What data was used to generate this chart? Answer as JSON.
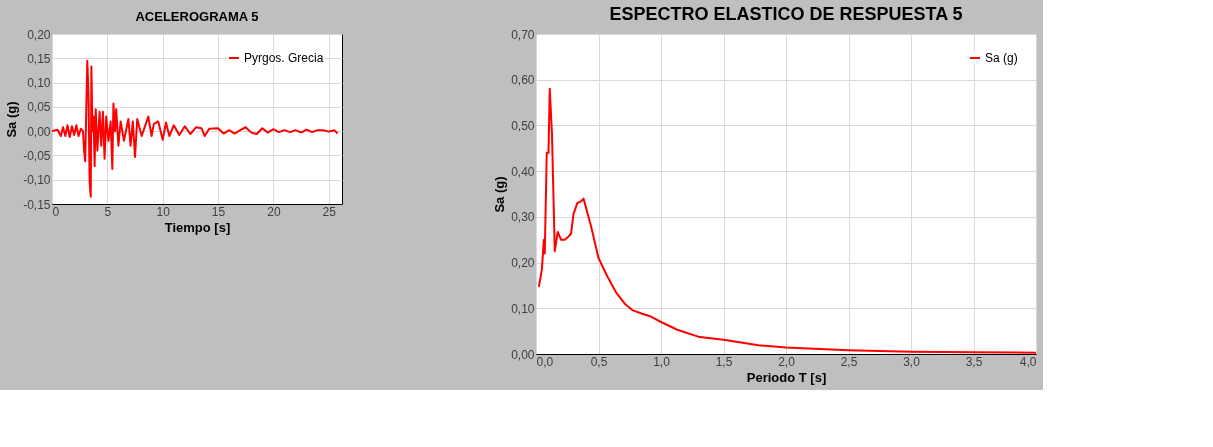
{
  "chart_data": [
    {
      "type": "line",
      "title": "ACELEROGRAMA 5",
      "xlabel": "Tiempo [s]",
      "ylabel": "Sa (g)",
      "legend": "top right",
      "grid": true,
      "xlim": [
        0,
        26.2
      ],
      "xticks": [
        0,
        5,
        10,
        15,
        20,
        25
      ],
      "ylim": [
        -0.15,
        0.2
      ],
      "yticks": [
        {
          "value": -0.15,
          "label": "-0,15"
        },
        {
          "value": -0.1,
          "label": "-0,10"
        },
        {
          "value": -0.05,
          "label": "-0,05"
        },
        {
          "value": 0,
          "label": "0,00"
        },
        {
          "value": 0.05,
          "label": "0,05"
        },
        {
          "value": 0.1,
          "label": "0,10"
        },
        {
          "value": 0.15,
          "label": "0,15"
        },
        {
          "value": 0.2,
          "label": "0,20"
        }
      ],
      "series": [
        {
          "name": "Pyrgos. Grecia",
          "color": "#ff0000",
          "x": [
            0,
            0.5,
            0.8,
            1.0,
            1.2,
            1.4,
            1.6,
            1.8,
            2.0,
            2.2,
            2.4,
            2.6,
            2.8,
            2.9,
            3.0,
            3.1,
            3.19,
            3.3,
            3.4,
            3.5,
            3.56,
            3.65,
            3.75,
            3.85,
            3.95,
            4.1,
            4.3,
            4.45,
            4.6,
            4.75,
            4.9,
            5.1,
            5.3,
            5.45,
            5.55,
            5.7,
            5.8,
            6.0,
            6.2,
            6.5,
            6.9,
            7.1,
            7.3,
            7.5,
            7.7,
            8.1,
            8.7,
            9.0,
            9.2,
            9.6,
            10.0,
            10.3,
            10.6,
            11.0,
            11.5,
            12.0,
            12.5,
            13.0,
            13.5,
            13.8,
            14.2,
            15.0,
            15.5,
            16.0,
            16.5,
            17.0,
            17.5,
            18.0,
            18.5,
            19.0,
            19.5,
            20.0,
            20.5,
            21.0,
            21.5,
            22.0,
            22.5,
            23.0,
            23.5,
            24.0,
            24.5,
            25.0,
            25.5,
            25.8
          ],
          "values": [
            0,
            0.003,
            -0.01,
            0.008,
            -0.01,
            0.012,
            -0.012,
            0.01,
            -0.008,
            0.012,
            -0.01,
            0.005,
            0.0,
            -0.04,
            -0.062,
            0.05,
            0.145,
            0.07,
            -0.105,
            -0.135,
            0.133,
            0.0,
            0.03,
            -0.072,
            0.045,
            -0.04,
            0.04,
            -0.03,
            0.04,
            -0.057,
            0.03,
            -0.02,
            0.02,
            -0.078,
            0.057,
            0.0,
            0.045,
            -0.03,
            0.02,
            -0.02,
            0.025,
            -0.03,
            0.02,
            -0.053,
            0.025,
            -0.01,
            0.03,
            -0.01,
            0.015,
            0.02,
            -0.018,
            0.018,
            -0.01,
            0.012,
            -0.008,
            0.01,
            -0.006,
            0.008,
            0.006,
            -0.01,
            0.005,
            0.006,
            -0.005,
            0.002,
            -0.005,
            0.002,
            0.008,
            -0.003,
            -0.006,
            0.006,
            -0.003,
            0.004,
            -0.002,
            0.002,
            -0.002,
            0.002,
            -0.003,
            0.003,
            -0.002,
            0.002,
            0.002,
            -0.001,
            0.002,
            -0.005
          ]
        }
      ]
    },
    {
      "type": "line",
      "title": "ESPECTRO ELASTICO DE RESPUESTA 5",
      "xlabel": "Periodo T [s]",
      "ylabel": "Sa (g)",
      "legend": "top right",
      "grid": true,
      "xlim": [
        0,
        4
      ],
      "xticks": [
        {
          "value": 0,
          "label": "0,0"
        },
        {
          "value": 0.5,
          "label": "0,5"
        },
        {
          "value": 1,
          "label": "1,0"
        },
        {
          "value": 1.5,
          "label": "1,5"
        },
        {
          "value": 2,
          "label": "2,0"
        },
        {
          "value": 2.5,
          "label": "2,5"
        },
        {
          "value": 3,
          "label": "3,0"
        },
        {
          "value": 3.5,
          "label": "3,5"
        },
        {
          "value": 4,
          "label": "4,0"
        }
      ],
      "ylim": [
        0,
        0.7
      ],
      "yticks": [
        {
          "value": 0,
          "label": "0,00"
        },
        {
          "value": 0.1,
          "label": "0,10"
        },
        {
          "value": 0.2,
          "label": "0,20"
        },
        {
          "value": 0.3,
          "label": "0,30"
        },
        {
          "value": 0.4,
          "label": "0,40"
        },
        {
          "value": 0.5,
          "label": "0,50"
        },
        {
          "value": 0.6,
          "label": "0,60"
        },
        {
          "value": 0.7,
          "label": "0,70"
        }
      ],
      "series": [
        {
          "name": "Sa (g)",
          "color": "#ff0000",
          "x": [
            0.023,
            0.047,
            0.063,
            0.07,
            0.086,
            0.1,
            0.11,
            0.128,
            0.15,
            0.174,
            0.2,
            0.23,
            0.256,
            0.28,
            0.3,
            0.33,
            0.36,
            0.38,
            0.41,
            0.44,
            0.5,
            0.57,
            0.64,
            0.71,
            0.77,
            0.85,
            0.92,
            1.0,
            1.13,
            1.31,
            1.5,
            1.78,
            2.0,
            2.5,
            3.0,
            3.5,
            4.0
          ],
          "values": [
            0.147,
            0.185,
            0.25,
            0.22,
            0.44,
            0.44,
            0.58,
            0.48,
            0.225,
            0.267,
            0.25,
            0.25,
            0.256,
            0.263,
            0.306,
            0.33,
            0.334,
            0.34,
            0.31,
            0.28,
            0.21,
            0.17,
            0.135,
            0.11,
            0.096,
            0.088,
            0.082,
            0.07,
            0.053,
            0.037,
            0.031,
            0.019,
            0.014,
            0.008,
            0.005,
            0.004,
            0.003
          ]
        }
      ]
    }
  ]
}
